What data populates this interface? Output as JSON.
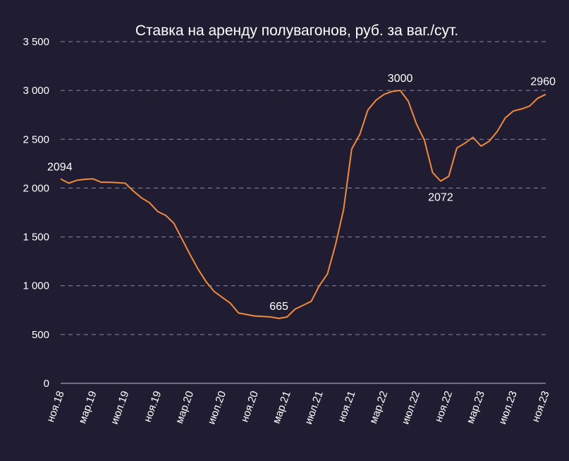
{
  "chart_data": {
    "type": "line",
    "title": "Ставка на аренду полувагонов, руб. за ваг./сут.",
    "xlabel": "",
    "ylabel": "",
    "ylim": [
      0,
      3500
    ],
    "y_ticks": [
      {
        "value": 0,
        "label": "0"
      },
      {
        "value": 500,
        "label": "500"
      },
      {
        "value": 1000,
        "label": "1 000"
      },
      {
        "value": 1500,
        "label": "1 500"
      },
      {
        "value": 2000,
        "label": "2 000"
      },
      {
        "value": 2500,
        "label": "2 500"
      },
      {
        "value": 3000,
        "label": "3 000"
      },
      {
        "value": 3500,
        "label": "3 500"
      }
    ],
    "x_tick_labels": [
      "ноя.18",
      "мар.19",
      "июл.19",
      "ноя.19",
      "мар.20",
      "июл.20",
      "ноя.20",
      "мар.21",
      "июл.21",
      "ноя.21",
      "мар.22",
      "июл.22",
      "ноя.22",
      "мар.23",
      "июл.23",
      "ноя.23"
    ],
    "grid": true,
    "line_color": "#f08a3c",
    "series": [
      {
        "values": [
          2094,
          2050,
          2080,
          2090,
          2095,
          2060,
          2060,
          2055,
          2050,
          1970,
          1900,
          1850,
          1760,
          1720,
          1640,
          1480,
          1320,
          1170,
          1040,
          940,
          880,
          820,
          720,
          705,
          690,
          685,
          680,
          665,
          680,
          760,
          800,
          840,
          1000,
          1120,
          1420,
          1780,
          2400,
          2550,
          2800,
          2900,
          2960,
          2990,
          3000,
          2890,
          2660,
          2490,
          2160,
          2072,
          2120,
          2410,
          2460,
          2520,
          2430,
          2480,
          2580,
          2720,
          2790,
          2810,
          2840,
          2920,
          2960
        ]
      }
    ],
    "annotations": [
      {
        "index": 0,
        "text": "2094"
      },
      {
        "index": 27,
        "text": "665"
      },
      {
        "index": 42,
        "text": "3000"
      },
      {
        "index": 47,
        "text": "2072"
      },
      {
        "index": 60,
        "text": "2960"
      }
    ]
  }
}
